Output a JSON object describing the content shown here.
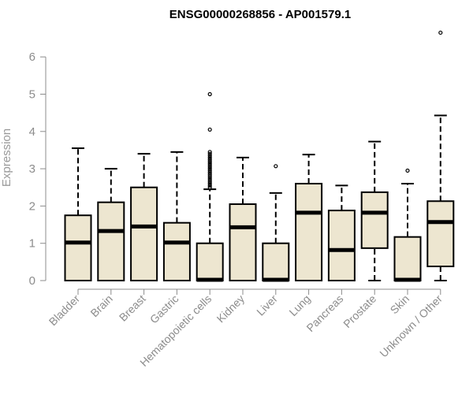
{
  "chart_data": {
    "type": "boxplot",
    "title": "ENSG00000268856 - AP001579.1",
    "ylabel": "Expression",
    "xlabel": "",
    "ylim": [
      0,
      6.8
    ],
    "yticks": [
      0,
      1,
      2,
      3,
      4,
      5,
      6
    ],
    "grid": false,
    "legend": "none",
    "colors": {
      "box_fill": "#ede6d0",
      "stroke": "#000000",
      "axis": "#8c8c8c"
    },
    "categories": [
      "Bladder",
      "Brain",
      "Breast",
      "Gastric",
      "Hematopoietic cells",
      "Kidney",
      "Liver",
      "Lung",
      "Pancreas",
      "Prostate",
      "Skin",
      "Unknown / Other"
    ],
    "boxes": [
      {
        "category": "Bladder",
        "whisker_low": 0,
        "q1": 0,
        "median": 1.02,
        "q3": 1.75,
        "whisker_high": 3.55,
        "outliers": []
      },
      {
        "category": "Brain",
        "whisker_low": 0,
        "q1": 0,
        "median": 1.33,
        "q3": 2.1,
        "whisker_high": 3.0,
        "outliers": []
      },
      {
        "category": "Breast",
        "whisker_low": 0,
        "q1": 0,
        "median": 1.45,
        "q3": 2.5,
        "whisker_high": 3.4,
        "outliers": []
      },
      {
        "category": "Gastric",
        "whisker_low": 0,
        "q1": 0,
        "median": 1.02,
        "q3": 1.55,
        "whisker_high": 3.45,
        "outliers": []
      },
      {
        "category": "Hematopoietic cells",
        "whisker_low": 0,
        "q1": 0,
        "median": 0.02,
        "q3": 1.0,
        "whisker_high": 2.45,
        "outliers": [
          2.5,
          2.55,
          2.6,
          2.65,
          2.7,
          2.75,
          2.8,
          2.85,
          2.9,
          2.95,
          3.0,
          3.05,
          3.1,
          3.15,
          3.2,
          3.25,
          3.3,
          3.35,
          3.4,
          3.45,
          4.05,
          5.0
        ]
      },
      {
        "category": "Kidney",
        "whisker_low": 0,
        "q1": 0,
        "median": 1.43,
        "q3": 2.05,
        "whisker_high": 3.3,
        "outliers": []
      },
      {
        "category": "Liver",
        "whisker_low": 0,
        "q1": 0,
        "median": 0.02,
        "q3": 1.0,
        "whisker_high": 2.35,
        "outliers": [
          3.07
        ]
      },
      {
        "category": "Lung",
        "whisker_low": 0,
        "q1": 0,
        "median": 1.82,
        "q3": 2.6,
        "whisker_high": 3.38,
        "outliers": []
      },
      {
        "category": "Pancreas",
        "whisker_low": 0,
        "q1": 0,
        "median": 0.82,
        "q3": 1.88,
        "whisker_high": 2.55,
        "outliers": []
      },
      {
        "category": "Prostate",
        "whisker_low": 0,
        "q1": 0.87,
        "median": 1.82,
        "q3": 2.37,
        "whisker_high": 3.73,
        "outliers": []
      },
      {
        "category": "Skin",
        "whisker_low": 0,
        "q1": 0,
        "median": 0.02,
        "q3": 1.17,
        "whisker_high": 2.6,
        "outliers": [
          2.95
        ]
      },
      {
        "category": "Unknown / Other",
        "whisker_low": 0,
        "q1": 0.38,
        "median": 1.57,
        "q3": 2.13,
        "whisker_high": 4.43,
        "outliers": [
          6.65
        ]
      }
    ]
  }
}
